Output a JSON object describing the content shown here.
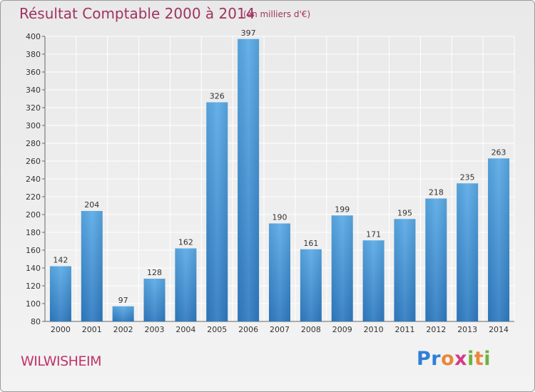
{
  "header": {
    "title": "Résultat Comptable 2000 à 2014",
    "subtitle": "(en milliers d'€)"
  },
  "footer": {
    "commune": "WILWISHEIM",
    "brand": "Proxiti"
  },
  "colors": {
    "title": "#a0335f",
    "bar_top": "#5aaae6",
    "bar_bottom": "#2f7bc2",
    "grid": "#ffffff"
  },
  "chart_data": {
    "type": "bar",
    "categories": [
      "2000",
      "2001",
      "2002",
      "2003",
      "2004",
      "2005",
      "2006",
      "2007",
      "2008",
      "2009",
      "2010",
      "2011",
      "2012",
      "2013",
      "2014"
    ],
    "values": [
      142,
      204,
      97,
      128,
      162,
      326,
      397,
      190,
      161,
      199,
      171,
      195,
      218,
      235,
      263
    ],
    "title": "Résultat Comptable 2000 à 2014",
    "subtitle": "(en milliers d'€)",
    "xlabel": "",
    "ylabel": "",
    "ylim": [
      80,
      400
    ],
    "yticks": [
      80,
      100,
      120,
      140,
      160,
      180,
      200,
      220,
      240,
      260,
      280,
      300,
      320,
      340,
      360,
      380,
      400
    ],
    "grid": true
  }
}
